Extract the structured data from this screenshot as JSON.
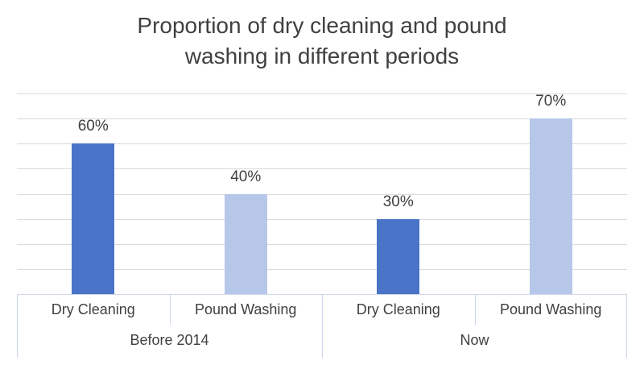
{
  "title": "Proportion of dry cleaning and pound washing in different periods",
  "colors": {
    "background": "#FFFFFF",
    "text": "#404040",
    "gridline": "#DBDBDB",
    "axis_line": "#D2D9E6",
    "tick_line": "#C9D4EC",
    "bar_colors": {
      "Dry Cleaning": "#4A74C8",
      "Pound Washing": "#B6C7E9"
    }
  },
  "chart_data": {
    "type": "bar",
    "title": "Proportion of dry cleaning and pound washing in different periods",
    "xlabel": "",
    "ylabel": "",
    "ylim": [
      0,
      80
    ],
    "gridline_step": 10,
    "grid": true,
    "legend": "none",
    "value_unit": "%",
    "categories": [
      "Dry Cleaning",
      "Pound Washing"
    ],
    "groups": [
      {
        "label": "Before 2014",
        "bars": [
          {
            "category": "Dry Cleaning",
            "value": 60,
            "label": "60%"
          },
          {
            "category": "Pound Washing",
            "value": 40,
            "label": "40%"
          }
        ]
      },
      {
        "label": "Now",
        "bars": [
          {
            "category": "Dry Cleaning",
            "value": 30,
            "label": "30%"
          },
          {
            "category": "Pound Washing",
            "value": 70,
            "label": "70%"
          }
        ]
      }
    ]
  }
}
